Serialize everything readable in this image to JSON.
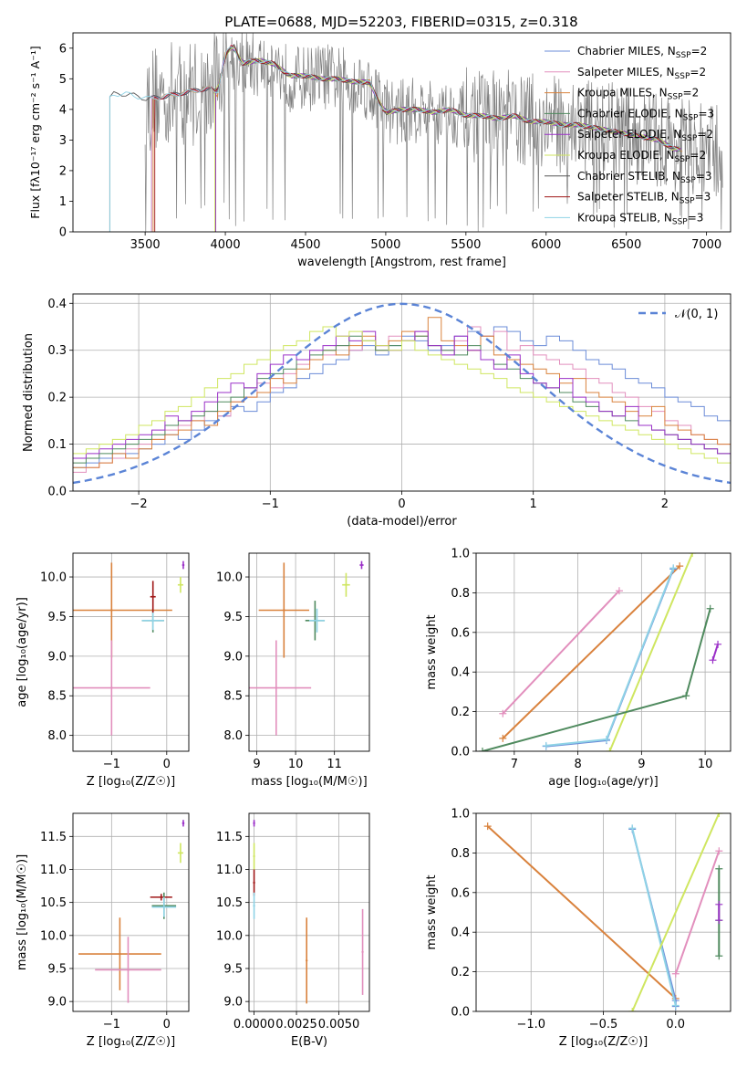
{
  "figure": {
    "title": "PLATE=0688, MJD=52203, FIBERID=0315, z=0.318"
  },
  "models": [
    {
      "name": "Chabrier MILES",
      "nssp": "2",
      "color": "#6b8cd8"
    },
    {
      "name": "Salpeter MILES",
      "nssp": "2",
      "color": "#e28fbd"
    },
    {
      "name": "Kroupa MILES",
      "nssp": "2",
      "color": "#d9823d"
    },
    {
      "name": "Chabrier ELODIE",
      "nssp": "3",
      "color": "#4f8a5e"
    },
    {
      "name": "Salpeter ELODIE",
      "nssp": "2",
      "color": "#9b30c8"
    },
    {
      "name": "Kroupa ELODIE",
      "nssp": "2",
      "color": "#cfe660"
    },
    {
      "name": "Chabrier STELIB",
      "nssp": "3",
      "color": "#555555"
    },
    {
      "name": "Salpeter STELIB",
      "nssp": "3",
      "color": "#a01818"
    },
    {
      "name": "Kroupa STELIB",
      "nssp": "3",
      "color": "#8fd3e6"
    }
  ],
  "chart_data": [
    {
      "id": "spectrum",
      "type": "line",
      "xlabel": "wavelength [Angstrom, rest frame]",
      "ylabel": "Flux [fλ10⁻¹⁷ erg cm⁻² s⁻¹ A⁻¹]",
      "xlim": [
        3050,
        7150
      ],
      "ylim": [
        0,
        6.5
      ],
      "xticks": [
        3500,
        4000,
        4500,
        5000,
        5500,
        6000,
        6500,
        7000
      ],
      "yticks": [
        0,
        1,
        2,
        3,
        4,
        5,
        6
      ],
      "grid": false,
      "legend": "top-right",
      "observed": {
        "x": [
          3500,
          3600,
          3700,
          3800,
          3900,
          4000,
          4100,
          4200,
          4300,
          4400,
          4500,
          4600,
          4700,
          4800,
          4900,
          5000,
          5100,
          5200,
          5300,
          5400,
          5500,
          5600,
          5700,
          5800,
          5900,
          6000,
          6100,
          6200,
          6300,
          6400,
          6500,
          6600,
          6700,
          6800,
          6900,
          7000
        ],
        "y": [
          4.3,
          4.4,
          4.5,
          4.6,
          4.4,
          5.7,
          5.6,
          5.4,
          5.5,
          5.0,
          5.0,
          5.1,
          5.0,
          4.9,
          4.7,
          4.0,
          3.9,
          4.0,
          3.9,
          3.9,
          3.8,
          3.8,
          3.7,
          3.7,
          3.6,
          3.6,
          3.5,
          3.5,
          3.4,
          3.3,
          3.2,
          3.1,
          3.0,
          2.9,
          2.7,
          2.6
        ]
      },
      "model_curve": {
        "x": [
          3250,
          3300,
          3400,
          3500,
          3600,
          3700,
          3800,
          3900,
          3950,
          4000,
          4050,
          4100,
          4200,
          4300,
          4400,
          4500,
          4600,
          4700,
          4800,
          4900,
          4950,
          5000,
          5100,
          5200,
          5300,
          5400,
          5500,
          5600,
          5700,
          5800,
          5900,
          6000,
          6100,
          6200,
          6300,
          6400,
          6500,
          6600,
          6700,
          6800
        ],
        "y": [
          4.2,
          4.5,
          4.5,
          4.35,
          4.4,
          4.5,
          4.6,
          4.7,
          4.5,
          5.8,
          6.1,
          5.5,
          5.6,
          5.5,
          5.1,
          5.1,
          5.0,
          5.0,
          4.9,
          4.9,
          4.3,
          3.9,
          4.0,
          4.0,
          3.9,
          4.0,
          3.8,
          3.8,
          3.7,
          3.8,
          3.6,
          3.6,
          3.5,
          3.5,
          3.4,
          3.3,
          3.2,
          3.1,
          3.0,
          2.7
        ]
      },
      "model_start_wavelengths": [
        3540,
        3540,
        3550,
        3940,
        3940,
        3935,
        3280,
        3560,
        3280
      ]
    },
    {
      "id": "residuals",
      "type": "area",
      "xlabel": "(data-model)/error",
      "ylabel": "Normed distribution",
      "xlim": [
        -2.5,
        2.5
      ],
      "ylim": [
        0,
        0.42
      ],
      "xticks": [
        -2,
        -1,
        0,
        1,
        2
      ],
      "yticks": [
        0.0,
        0.1,
        0.2,
        0.3,
        0.4
      ],
      "grid": true,
      "legend": "top-right",
      "reference_label": "𝒩(0, 1)",
      "reference_color": "#5b84d6",
      "bin_width": 0.1,
      "bin_start": -2.5,
      "histograms": [
        [
          0.05,
          0.06,
          0.07,
          0.08,
          0.08,
          0.09,
          0.1,
          0.12,
          0.11,
          0.13,
          0.15,
          0.16,
          0.18,
          0.17,
          0.19,
          0.21,
          0.22,
          0.24,
          0.25,
          0.27,
          0.28,
          0.3,
          0.31,
          0.29,
          0.31,
          0.33,
          0.32,
          0.3,
          0.31,
          0.33,
          0.34,
          0.33,
          0.35,
          0.34,
          0.32,
          0.31,
          0.33,
          0.32,
          0.3,
          0.28,
          0.27,
          0.26,
          0.24,
          0.23,
          0.22,
          0.2,
          0.19,
          0.18,
          0.16,
          0.15,
          0.14,
          0.13,
          0.12,
          0.11,
          0.1,
          0.09,
          0.08,
          0.07,
          0.06,
          0.05
        ],
        [
          0.04,
          0.05,
          0.06,
          0.07,
          0.09,
          0.1,
          0.11,
          0.13,
          0.14,
          0.15,
          0.17,
          0.16,
          0.19,
          0.2,
          0.23,
          0.22,
          0.25,
          0.27,
          0.28,
          0.29,
          0.31,
          0.3,
          0.32,
          0.31,
          0.33,
          0.32,
          0.34,
          0.31,
          0.3,
          0.32,
          0.35,
          0.33,
          0.34,
          0.3,
          0.31,
          0.29,
          0.28,
          0.27,
          0.26,
          0.24,
          0.23,
          0.21,
          0.2,
          0.18,
          0.17,
          0.15,
          0.14,
          0.12,
          0.11,
          0.1,
          0.09,
          0.08,
          0.07,
          0.06,
          0.05,
          0.04,
          0.04,
          0.03,
          0.03,
          0.02
        ],
        [
          0.05,
          0.05,
          0.06,
          0.08,
          0.07,
          0.09,
          0.11,
          0.12,
          0.13,
          0.15,
          0.14,
          0.17,
          0.19,
          0.2,
          0.21,
          0.24,
          0.23,
          0.26,
          0.28,
          0.3,
          0.29,
          0.31,
          0.33,
          0.3,
          0.32,
          0.34,
          0.33,
          0.37,
          0.32,
          0.31,
          0.3,
          0.33,
          0.29,
          0.28,
          0.27,
          0.26,
          0.25,
          0.23,
          0.24,
          0.21,
          0.2,
          0.19,
          0.17,
          0.16,
          0.18,
          0.14,
          0.13,
          0.12,
          0.11,
          0.1,
          0.09,
          0.08,
          0.07,
          0.08,
          0.06,
          0.05,
          0.05,
          0.04,
          0.04,
          0.03
        ],
        [
          0.06,
          0.07,
          0.08,
          0.09,
          0.1,
          0.11,
          0.12,
          0.14,
          0.15,
          0.16,
          0.17,
          0.19,
          0.2,
          0.22,
          0.24,
          0.25,
          0.26,
          0.28,
          0.29,
          0.3,
          0.31,
          0.33,
          0.32,
          0.3,
          0.31,
          0.32,
          0.33,
          0.31,
          0.3,
          0.29,
          0.31,
          0.28,
          0.27,
          0.26,
          0.24,
          0.23,
          0.22,
          0.21,
          0.19,
          0.18,
          0.17,
          0.16,
          0.15,
          0.14,
          0.13,
          0.12,
          0.11,
          0.1,
          0.09,
          0.08,
          0.07,
          0.07,
          0.06,
          0.05,
          0.05,
          0.04,
          0.04,
          0.03,
          0.03,
          0.03
        ],
        [
          0.07,
          0.08,
          0.09,
          0.1,
          0.11,
          0.12,
          0.13,
          0.16,
          0.15,
          0.17,
          0.19,
          0.21,
          0.23,
          0.22,
          0.25,
          0.27,
          0.29,
          0.28,
          0.3,
          0.31,
          0.33,
          0.32,
          0.34,
          0.31,
          0.3,
          0.32,
          0.34,
          0.31,
          0.29,
          0.33,
          0.3,
          0.28,
          0.26,
          0.29,
          0.25,
          0.23,
          0.22,
          0.24,
          0.2,
          0.19,
          0.17,
          0.16,
          0.18,
          0.14,
          0.13,
          0.12,
          0.11,
          0.1,
          0.09,
          0.08,
          0.07,
          0.07,
          0.06,
          0.05,
          0.05,
          0.04,
          0.04,
          0.03,
          0.03,
          0.03
        ],
        [
          0.08,
          0.09,
          0.1,
          0.11,
          0.12,
          0.14,
          0.15,
          0.17,
          0.18,
          0.2,
          0.22,
          0.24,
          0.25,
          0.27,
          0.28,
          0.3,
          0.31,
          0.32,
          0.34,
          0.35,
          0.33,
          0.34,
          0.32,
          0.31,
          0.3,
          0.32,
          0.3,
          0.29,
          0.28,
          0.27,
          0.26,
          0.25,
          0.24,
          0.22,
          0.21,
          0.2,
          0.19,
          0.18,
          0.17,
          0.16,
          0.15,
          0.14,
          0.13,
          0.12,
          0.11,
          0.1,
          0.09,
          0.08,
          0.07,
          0.06,
          0.06,
          0.05,
          0.05,
          0.04,
          0.04,
          0.03,
          0.03,
          0.03,
          0.02,
          0.02
        ]
      ]
    },
    {
      "id": "age_vs_z",
      "type": "scatter",
      "xlabel": "Z [log₁₀(Z/Z☉)]",
      "ylabel": "age  [log₁₀(age/yr)]",
      "xlim": [
        -1.7,
        0.4
      ],
      "ylim": [
        7.8,
        10.3
      ],
      "xticks": [
        -1,
        0
      ],
      "yticks": [
        8.0,
        8.5,
        9.0,
        9.5,
        10.0
      ],
      "grid": true,
      "points": [
        {
          "model": 2,
          "x": -1.0,
          "y": 9.58,
          "xerr": 1.1,
          "yerr": 0.6
        },
        {
          "model": 1,
          "x": -1.0,
          "y": 8.6,
          "xerr": 0.7,
          "yerr": 0.6
        },
        {
          "model": 3,
          "x": -0.25,
          "y": 9.45,
          "xerr": 0.2,
          "yerr": 0.15
        },
        {
          "model": 8,
          "x": -0.25,
          "y": 9.45,
          "xerr": 0.2,
          "yerr": 0.12
        },
        {
          "model": 7,
          "x": -0.25,
          "y": 9.75,
          "xerr": 0.05,
          "yerr": 0.2
        },
        {
          "model": 5,
          "x": 0.25,
          "y": 9.9,
          "xerr": 0.05,
          "yerr": 0.1
        },
        {
          "model": 4,
          "x": 0.3,
          "y": 10.15,
          "xerr": 0.02,
          "yerr": 0.05
        }
      ]
    },
    {
      "id": "age_vs_mass",
      "type": "scatter",
      "xlabel": "mass [log₁₀(M/M☉)]",
      "ylabel": "",
      "xlim": [
        8.8,
        11.9
      ],
      "ylim": [
        7.8,
        10.3
      ],
      "xticks": [
        9,
        10,
        11
      ],
      "yticks": [
        8.0,
        8.5,
        9.0,
        9.5,
        10.0
      ],
      "grid": true,
      "points": [
        {
          "model": 2,
          "x": 9.7,
          "y": 9.58,
          "xerr": 0.65,
          "yerr": 0.6
        },
        {
          "model": 1,
          "x": 9.5,
          "y": 8.6,
          "xerr": 0.9,
          "yerr": 0.6
        },
        {
          "model": 3,
          "x": 10.5,
          "y": 9.45,
          "xerr": 0.25,
          "yerr": 0.25
        },
        {
          "model": 8,
          "x": 10.55,
          "y": 9.45,
          "xerr": 0.2,
          "yerr": 0.15
        },
        {
          "model": 5,
          "x": 11.3,
          "y": 9.9,
          "xerr": 0.1,
          "yerr": 0.15
        },
        {
          "model": 4,
          "x": 11.7,
          "y": 10.15,
          "xerr": 0.05,
          "yerr": 0.05
        }
      ]
    },
    {
      "id": "mass_weight_vs_age",
      "type": "line",
      "xlabel": "age  [log₁₀(age/yr)]",
      "ylabel": "mass weight",
      "xlim": [
        6.4,
        10.4
      ],
      "ylim": [
        0,
        1
      ],
      "xticks": [
        7,
        8,
        9,
        10
      ],
      "yticks": [
        0.0,
        0.2,
        0.4,
        0.6,
        0.8,
        1.0
      ],
      "grid": true,
      "lines": [
        {
          "model": 1,
          "x": [
            6.82,
            8.65
          ],
          "y": [
            0.19,
            0.81
          ]
        },
        {
          "model": 2,
          "x": [
            6.82,
            9.6
          ],
          "y": [
            0.065,
            0.935
          ]
        },
        {
          "model": 0,
          "x": [
            7.5,
            8.45,
            9.5
          ],
          "y": [
            0.025,
            0.055,
            0.92
          ]
        },
        {
          "model": 8,
          "x": [
            7.5,
            8.45,
            9.5
          ],
          "y": [
            0.028,
            0.06,
            0.925
          ]
        },
        {
          "model": 5,
          "x": [
            8.5,
            9.8
          ],
          "y": [
            0.0,
            1.0
          ]
        },
        {
          "model": 3,
          "x": [
            6.5,
            9.7,
            10.08
          ],
          "y": [
            0.0,
            0.28,
            0.72
          ]
        },
        {
          "model": 4,
          "x": [
            10.12,
            10.2
          ],
          "y": [
            0.46,
            0.54
          ]
        }
      ]
    },
    {
      "id": "mass_vs_z",
      "type": "scatter",
      "xlabel": "Z [log₁₀(Z/Z☉)]",
      "ylabel": "mass [log₁₀(M/M☉)]",
      "xlim": [
        -1.7,
        0.4
      ],
      "ylim": [
        8.85,
        11.85
      ],
      "xticks": [
        -1,
        0
      ],
      "yticks": [
        9.0,
        9.5,
        10.0,
        10.5,
        11.0,
        11.5
      ],
      "grid": true,
      "points": [
        {
          "model": 2,
          "x": -0.85,
          "y": 9.72,
          "xerr": 0.75,
          "yerr": 0.55
        },
        {
          "model": 1,
          "x": -0.7,
          "y": 9.48,
          "xerr": 0.6,
          "yerr": 0.5
        },
        {
          "model": 7,
          "x": -0.1,
          "y": 10.58,
          "xerr": 0.2,
          "yerr": 0.05
        },
        {
          "model": 3,
          "x": -0.05,
          "y": 10.45,
          "xerr": 0.22,
          "yerr": 0.2
        },
        {
          "model": 8,
          "x": -0.05,
          "y": 10.43,
          "xerr": 0.22,
          "yerr": 0.15
        },
        {
          "model": 5,
          "x": 0.25,
          "y": 11.25,
          "xerr": 0.05,
          "yerr": 0.15
        },
        {
          "model": 4,
          "x": 0.3,
          "y": 11.7,
          "xerr": 0.02,
          "yerr": 0.05
        }
      ]
    },
    {
      "id": "mass_vs_ebv",
      "type": "scatter",
      "xlabel": "E(B-V)",
      "ylabel": "",
      "xlim": [
        -0.0003,
        0.0068
      ],
      "ylim": [
        8.85,
        11.85
      ],
      "xticks": [
        0.0,
        0.0025,
        0.005
      ],
      "xticklabels": [
        "0.0000",
        "0.0025",
        "0.0050"
      ],
      "yticks": [
        9.0,
        9.5,
        10.0,
        10.5,
        11.0,
        11.5
      ],
      "grid": true,
      "points": [
        {
          "model": 5,
          "x": 0.0,
          "y": 11.2,
          "xerr": 0,
          "yerr": 0.2
        },
        {
          "model": 4,
          "x": 0.0,
          "y": 11.7,
          "xerr": 0,
          "yerr": 0.05
        },
        {
          "model": 7,
          "x": 0.0,
          "y": 10.8,
          "xerr": 0,
          "yerr": 0.2
        },
        {
          "model": 8,
          "x": 0.0,
          "y": 10.45,
          "xerr": 0,
          "yerr": 0.2
        },
        {
          "model": 2,
          "x": 0.0031,
          "y": 9.62,
          "xerr": 0,
          "yerr": 0.65
        },
        {
          "model": 1,
          "x": 0.0064,
          "y": 9.75,
          "xerr": 0,
          "yerr": 0.65
        }
      ]
    },
    {
      "id": "mass_weight_vs_z",
      "type": "line",
      "xlabel": "Z [log₁₀(Z/Z☉)]",
      "ylabel": "mass weight",
      "xlim": [
        -1.38,
        0.38
      ],
      "ylim": [
        0,
        1
      ],
      "xticks": [
        -1.0,
        -0.5,
        0.0
      ],
      "xticklabels": [
        "−1.0",
        "−0.5",
        "0.0"
      ],
      "yticks": [
        0.0,
        0.2,
        0.4,
        0.6,
        0.8,
        1.0
      ],
      "grid": true,
      "lines": [
        {
          "model": 2,
          "x": [
            -1.3,
            0.0
          ],
          "y": [
            0.935,
            0.065
          ]
        },
        {
          "model": 0,
          "x": [
            -0.3,
            0.0,
            0.0
          ],
          "y": [
            0.92,
            0.055,
            0.025
          ]
        },
        {
          "model": 8,
          "x": [
            -0.3,
            0.0
          ],
          "y": [
            0.925,
            0.03
          ]
        },
        {
          "model": 5,
          "x": [
            -0.3,
            0.3
          ],
          "y": [
            0.0,
            1.0
          ]
        },
        {
          "model": 1,
          "x": [
            0.0,
            0.3
          ],
          "y": [
            0.19,
            0.81
          ]
        },
        {
          "model": 3,
          "x": [
            0.3,
            0.3,
            0.3
          ],
          "y": [
            0.28,
            0.46,
            0.72
          ]
        },
        {
          "model": 4,
          "x": [
            0.3,
            0.3
          ],
          "y": [
            0.46,
            0.54
          ]
        }
      ]
    }
  ]
}
